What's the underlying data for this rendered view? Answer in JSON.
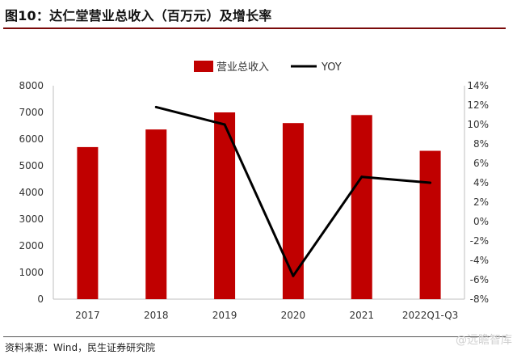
{
  "figure": {
    "title": "图10：达仁堂营业总收入（百万元）及增长率",
    "source": "资料来源：Wind，民生证券研究院",
    "watermark": "@远瞻智库"
  },
  "colors": {
    "bar": "#c00000",
    "line": "#000000",
    "title_rule": "#7a0a0a"
  },
  "chart_data": {
    "type": "bar",
    "categories": [
      "2017",
      "2018",
      "2019",
      "2020",
      "2021",
      "2022Q1-Q3"
    ],
    "series": [
      {
        "name": "营业总收入",
        "type": "bar",
        "axis": "left",
        "values": [
          5700,
          6360,
          7000,
          6600,
          6900,
          5560
        ]
      },
      {
        "name": "YOY",
        "type": "line",
        "axis": "right",
        "values": [
          null,
          11.8,
          10.0,
          -5.6,
          4.6,
          4.0
        ]
      }
    ],
    "y_left": {
      "min": 0,
      "max": 8000,
      "ticks": [
        "0",
        "1000",
        "2000",
        "3000",
        "4000",
        "5000",
        "6000",
        "7000",
        "8000"
      ]
    },
    "y_right": {
      "min": -8,
      "max": 14,
      "ticks": [
        "-8%",
        "-6%",
        "-4%",
        "-2%",
        "0%",
        "2%",
        "4%",
        "6%",
        "8%",
        "10%",
        "12%",
        "14%"
      ]
    },
    "legend": {
      "position": "top-center",
      "items": [
        "营业总收入",
        "YOY"
      ]
    },
    "grid": false
  }
}
